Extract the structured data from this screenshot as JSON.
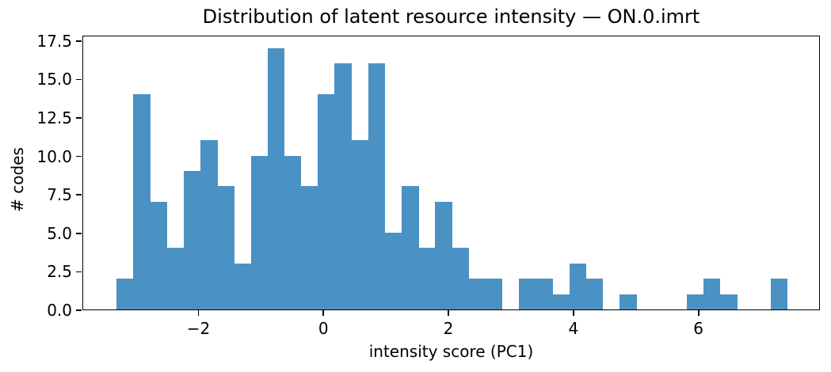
{
  "chart_data": {
    "type": "bar",
    "subtype": "histogram",
    "title": "Distribution of latent resource intensity — ON.0.imrt",
    "xlabel": "intensity score (PC1)",
    "ylabel": "# codes",
    "bin_start": -3.32,
    "bin_width": 0.2682,
    "counts": [
      2,
      14,
      7,
      4,
      9,
      11,
      8,
      3,
      10,
      17,
      10,
      8,
      14,
      16,
      11,
      16,
      5,
      8,
      4,
      7,
      4,
      2,
      2,
      0,
      2,
      2,
      1,
      3,
      2,
      0,
      1,
      0,
      0,
      0,
      1,
      2,
      1,
      0,
      0,
      2
    ],
    "xlim": [
      -3.856,
      7.944
    ],
    "ylim": [
      0,
      17.85
    ],
    "x_ticks": [
      -2,
      0,
      2,
      4,
      6
    ],
    "x_tick_labels": [
      "−2",
      "0",
      "2",
      "4",
      "6"
    ],
    "y_ticks": [
      0.0,
      2.5,
      5.0,
      7.5,
      10.0,
      12.5,
      15.0,
      17.5
    ],
    "y_tick_labels": [
      "0.0",
      "2.5",
      "5.0",
      "7.5",
      "10.0",
      "12.5",
      "15.0",
      "17.5"
    ],
    "bar_color": "#4b92c4",
    "axis_color": "#000000",
    "background_color": "#ffffff",
    "grid": false,
    "legend": null
  }
}
